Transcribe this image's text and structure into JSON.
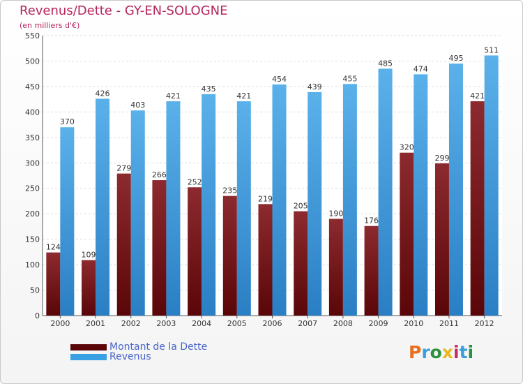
{
  "title": "Revenus/Dette - GY-EN-SOLOGNE",
  "subtitle": "(en milliers d'€)",
  "logo": {
    "text": "Proxiti",
    "colors": [
      "#e86f1f",
      "#3aa0db",
      "#2e8f3e",
      "#e8b820",
      "#c42d6b",
      "#3aa0db",
      "#2e8f3e"
    ]
  },
  "colors": {
    "debt": "#7a1518",
    "revenue": "#3aa0e4",
    "title": "#b5255e",
    "legend_text": "#4a64c8"
  },
  "legend": [
    {
      "label": "Montant de la Dette",
      "color": "#7a1518"
    },
    {
      "label": "Revenus",
      "color": "#3aa0e4"
    }
  ],
  "chart_data": {
    "type": "bar",
    "title": "Revenus/Dette - GY-EN-SOLOGNE",
    "subtitle": "(en milliers d'€)",
    "categories": [
      "2000",
      "2001",
      "2002",
      "2003",
      "2004",
      "2005",
      "2006",
      "2007",
      "2008",
      "2009",
      "2010",
      "2011",
      "2012"
    ],
    "series": [
      {
        "name": "Montant de la Dette",
        "values": [
          124,
          109,
          279,
          266,
          252,
          235,
          219,
          205,
          190,
          176,
          320,
          299,
          421
        ]
      },
      {
        "name": "Revenus",
        "values": [
          370,
          426,
          403,
          421,
          435,
          421,
          454,
          439,
          455,
          485,
          474,
          495,
          511
        ]
      }
    ],
    "ylim": [
      0,
      550
    ],
    "yticks": [
      0,
      50,
      100,
      150,
      200,
      250,
      300,
      350,
      400,
      450,
      500,
      550
    ],
    "grid": true,
    "legend_position": "bottom-left"
  }
}
